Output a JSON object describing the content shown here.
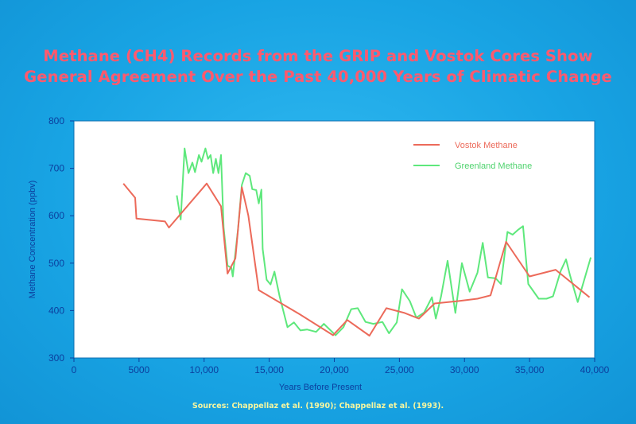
{
  "chart_data": {
    "type": "line",
    "title_line1": "Methane (CH4) Records from the GRIP and Vostok Cores Show",
    "title_line2": "General Agreement Over the Past 40,000 Years of Climatic Change",
    "xlabel": "Years Before Present",
    "ylabel": "Methane Concentration (ppbv)",
    "xlim": [
      0,
      40000
    ],
    "ylim": [
      300,
      800
    ],
    "xticks": [
      0,
      5000,
      10000,
      15000,
      20000,
      25000,
      30000,
      35000,
      40000
    ],
    "xtick_labels": [
      "0",
      "5000",
      "10,000",
      "15,000",
      "20,000",
      "25,000",
      "30,000",
      "35,000",
      "40,000"
    ],
    "yticks": [
      300,
      400,
      500,
      600,
      700,
      800
    ],
    "ytick_labels": [
      "300",
      "400",
      "500",
      "600",
      "700",
      "800"
    ],
    "legend_position": "top-right",
    "grid": false,
    "series": [
      {
        "name": "Vostok Methane",
        "color": "#ec6a5a",
        "points": [
          [
            3800,
            668
          ],
          [
            4700,
            638
          ],
          [
            4800,
            594
          ],
          [
            7000,
            588
          ],
          [
            7300,
            575
          ],
          [
            10200,
            668
          ],
          [
            11300,
            620
          ],
          [
            11800,
            478
          ],
          [
            12400,
            510
          ],
          [
            12900,
            660
          ],
          [
            13300,
            612
          ],
          [
            13400,
            600
          ],
          [
            14200,
            443
          ],
          [
            17300,
            393
          ],
          [
            19900,
            348
          ],
          [
            21000,
            380
          ],
          [
            22700,
            347
          ],
          [
            24000,
            405
          ],
          [
            25400,
            395
          ],
          [
            26500,
            383
          ],
          [
            27700,
            415
          ],
          [
            29500,
            420
          ],
          [
            31000,
            425
          ],
          [
            32000,
            432
          ],
          [
            33200,
            545
          ],
          [
            35000,
            472
          ],
          [
            37000,
            486
          ],
          [
            39600,
            428
          ]
        ]
      },
      {
        "name": "Greenland Methane",
        "color": "#5ee87c",
        "points": [
          [
            7900,
            643
          ],
          [
            8200,
            592
          ],
          [
            8500,
            742
          ],
          [
            8800,
            690
          ],
          [
            9100,
            712
          ],
          [
            9300,
            692
          ],
          [
            9600,
            728
          ],
          [
            9800,
            714
          ],
          [
            10100,
            742
          ],
          [
            10300,
            720
          ],
          [
            10500,
            728
          ],
          [
            10700,
            690
          ],
          [
            10900,
            720
          ],
          [
            11100,
            690
          ],
          [
            11300,
            728
          ],
          [
            11500,
            575
          ],
          [
            11800,
            495
          ],
          [
            12100,
            490
          ],
          [
            12200,
            472
          ],
          [
            12600,
            570
          ],
          [
            12900,
            665
          ],
          [
            13200,
            690
          ],
          [
            13500,
            684
          ],
          [
            13700,
            656
          ],
          [
            14000,
            654
          ],
          [
            14200,
            626
          ],
          [
            14400,
            655
          ],
          [
            14500,
            530
          ],
          [
            14800,
            465
          ],
          [
            15100,
            455
          ],
          [
            15400,
            482
          ],
          [
            15800,
            430
          ],
          [
            16400,
            365
          ],
          [
            16900,
            375
          ],
          [
            17400,
            358
          ],
          [
            17900,
            360
          ],
          [
            18600,
            355
          ],
          [
            19200,
            372
          ],
          [
            20100,
            348
          ],
          [
            20700,
            365
          ],
          [
            21300,
            403
          ],
          [
            21800,
            405
          ],
          [
            22400,
            376
          ],
          [
            23000,
            372
          ],
          [
            23700,
            376
          ],
          [
            24200,
            352
          ],
          [
            24800,
            375
          ],
          [
            25200,
            445
          ],
          [
            25800,
            420
          ],
          [
            26300,
            385
          ],
          [
            26900,
            396
          ],
          [
            27500,
            428
          ],
          [
            27800,
            383
          ],
          [
            28200,
            430
          ],
          [
            28700,
            505
          ],
          [
            29300,
            395
          ],
          [
            29800,
            500
          ],
          [
            30400,
            440
          ],
          [
            31000,
            480
          ],
          [
            31400,
            543
          ],
          [
            31800,
            470
          ],
          [
            32400,
            468
          ],
          [
            32800,
            456
          ],
          [
            33300,
            566
          ],
          [
            33700,
            560
          ],
          [
            34100,
            570
          ],
          [
            34500,
            578
          ],
          [
            34900,
            456
          ],
          [
            35700,
            425
          ],
          [
            36300,
            425
          ],
          [
            36800,
            430
          ],
          [
            37400,
            484
          ],
          [
            37800,
            508
          ],
          [
            38100,
            475
          ],
          [
            38700,
            418
          ],
          [
            39200,
            465
          ],
          [
            39700,
            512
          ]
        ]
      }
    ]
  },
  "sources": "Sources:  Chappellaz et al. (1990); Chappellaz et al. (1993)."
}
